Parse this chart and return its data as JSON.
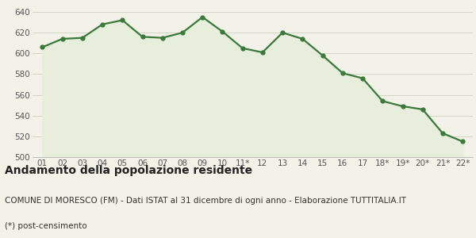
{
  "x_labels": [
    "01",
    "02",
    "03",
    "04",
    "05",
    "06",
    "07",
    "08",
    "09",
    "10",
    "11*",
    "12",
    "13",
    "14",
    "15",
    "16",
    "17",
    "18*",
    "19*",
    "20*",
    "21*",
    "22*"
  ],
  "y_values": [
    606,
    614,
    615,
    628,
    632,
    616,
    615,
    620,
    635,
    621,
    605,
    601,
    620,
    614,
    598,
    581,
    576,
    554,
    549,
    546,
    523,
    515
  ],
  "line_color": "#3a7a3a",
  "fill_color": "#e8eedc",
  "marker": "o",
  "marker_size": 3.5,
  "line_width": 1.6,
  "ylim": [
    500,
    640
  ],
  "yticks": [
    500,
    520,
    540,
    560,
    580,
    600,
    620,
    640
  ],
  "bg_color": "#f2f2e8",
  "title": "Andamento della popolazione residente",
  "subtitle": "COMUNE DI MORESCO (FM) - Dati ISTAT al 31 dicembre di ogni anno - Elaborazione TUTTITALIA.IT",
  "footnote": "(*) post-censimento",
  "title_fontsize": 10,
  "subtitle_fontsize": 7.5,
  "footnote_fontsize": 7.5,
  "grid_color": "#d0d0c0",
  "tick_fontsize": 7.5
}
